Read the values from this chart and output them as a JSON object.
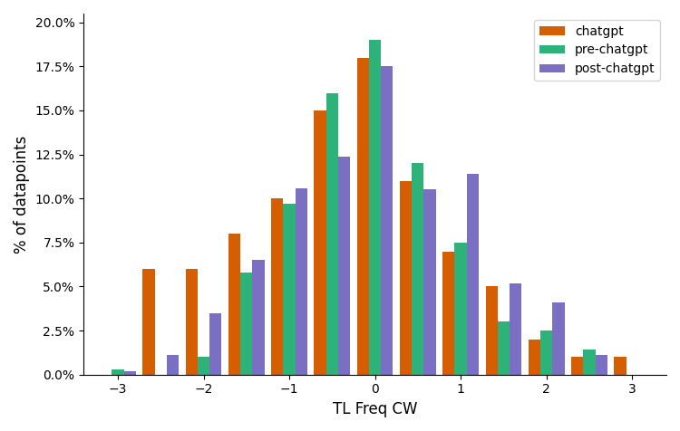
{
  "title": "",
  "xlabel": "TL Freq CW",
  "ylabel": "% of datapoints",
  "x_positions": [
    -3,
    -2.5,
    -2,
    -1.5,
    -1,
    -0.5,
    0,
    0.5,
    1,
    1.5,
    2,
    2.5,
    3
  ],
  "chatgpt": [
    0.0,
    0.06,
    0.06,
    0.08,
    0.1,
    0.15,
    0.18,
    0.11,
    0.07,
    0.05,
    0.02,
    0.01,
    0.01
  ],
  "pre_chatgpt": [
    0.003,
    0.0,
    0.01,
    0.058,
    0.097,
    0.16,
    0.19,
    0.12,
    0.075,
    0.03,
    0.025,
    0.014,
    0.0
  ],
  "post_chatgpt": [
    0.002,
    0.011,
    0.035,
    0.065,
    0.106,
    0.124,
    0.175,
    0.105,
    0.114,
    0.052,
    0.041,
    0.011,
    0.0
  ],
  "colors": {
    "chatgpt": "#d55e00",
    "pre_chatgpt": "#2db37a",
    "post_chatgpt": "#7b6fc4"
  },
  "legend_labels": [
    "chatgpt",
    "pre-chatgpt",
    "post-chatgpt"
  ],
  "ylim": [
    0,
    0.205
  ],
  "yticks": [
    0.0,
    0.025,
    0.05,
    0.075,
    0.1,
    0.125,
    0.15,
    0.175,
    0.2
  ],
  "bar_width": 0.14,
  "bar_spacing": 0.14,
  "figsize": [
    7.5,
    4.76
  ],
  "dpi": 100
}
